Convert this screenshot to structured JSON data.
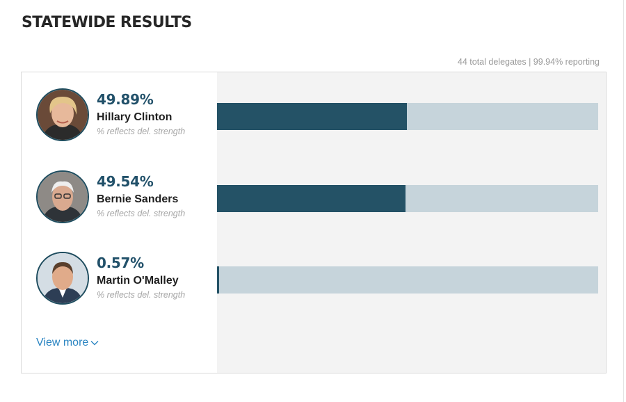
{
  "header": {
    "title": "STATEWIDE RESULTS",
    "summary": "44 total delegates | 99.94% reporting"
  },
  "candidates": [
    {
      "percent_label": "49.89%",
      "name": "Hillary Clinton",
      "note": "% reflects del. strength",
      "share": 49.89,
      "photo_icon": "candidate-photo-icon"
    },
    {
      "percent_label": "49.54%",
      "name": "Bernie Sanders",
      "note": "% reflects del. strength",
      "share": 49.54,
      "photo_icon": "candidate-photo-icon"
    },
    {
      "percent_label": "0.57%",
      "name": "Martin O'Malley",
      "note": "% reflects del. strength",
      "share": 0.57,
      "photo_icon": "candidate-photo-icon"
    }
  ],
  "view_more": {
    "label": "View more",
    "icon": "chevron-down-icon"
  },
  "colors": {
    "bar_fill": "#245266",
    "bar_track": "#c6d4db",
    "percent_text": "#22516a",
    "link": "#2b85c2",
    "avatar_ring": "#1f4d5f"
  }
}
